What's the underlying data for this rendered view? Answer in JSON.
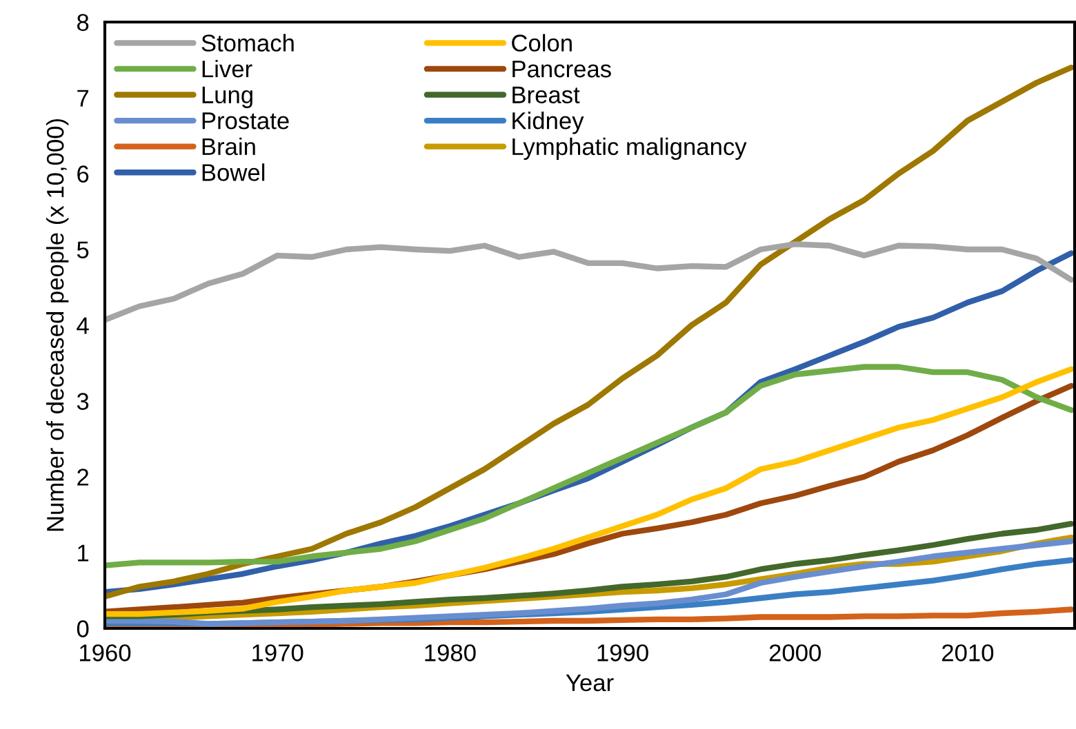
{
  "chart_data": {
    "type": "line",
    "xlabel": "Year",
    "ylabel": "Number of deceased people (x 10,000)",
    "x": [
      1960,
      1962,
      1964,
      1966,
      1968,
      1970,
      1972,
      1974,
      1976,
      1978,
      1980,
      1982,
      1984,
      1986,
      1988,
      1990,
      1992,
      1994,
      1996,
      1998,
      2000,
      2002,
      2004,
      2006,
      2008,
      2010,
      2012,
      2014,
      2016
    ],
    "xlim": [
      1960,
      2016.2
    ],
    "xticks": [
      1960,
      1970,
      1980,
      1990,
      2000,
      2010
    ],
    "ylim": [
      0,
      8
    ],
    "yticks": [
      0,
      1,
      2,
      3,
      4,
      5,
      6,
      7,
      8
    ],
    "grid": false,
    "legend": "top left",
    "marker": "none",
    "line_style": "solid",
    "series": [
      {
        "name": "Stomach",
        "color": "#a5a5a5",
        "values": [
          4.07,
          4.25,
          4.35,
          4.55,
          4.68,
          4.92,
          4.9,
          5.0,
          5.03,
          5.0,
          4.98,
          5.05,
          4.9,
          4.97,
          4.82,
          4.82,
          4.75,
          4.78,
          4.77,
          5.0,
          5.07,
          5.05,
          4.92,
          5.05,
          5.04,
          5.0,
          5.0,
          4.88,
          4.6
        ]
      },
      {
        "name": "Colon",
        "color": "#ffc000",
        "values": [
          0.19,
          0.19,
          0.21,
          0.23,
          0.26,
          0.35,
          0.42,
          0.5,
          0.55,
          0.6,
          0.7,
          0.8,
          0.92,
          1.05,
          1.2,
          1.35,
          1.5,
          1.7,
          1.85,
          2.1,
          2.2,
          2.35,
          2.5,
          2.65,
          2.75,
          2.9,
          3.05,
          3.25,
          3.42
        ]
      },
      {
        "name": "Liver",
        "color": "#70ad47",
        "values": [
          0.83,
          0.87,
          0.87,
          0.87,
          0.88,
          0.88,
          0.95,
          1.0,
          1.05,
          1.15,
          1.3,
          1.45,
          1.65,
          1.85,
          2.05,
          2.25,
          2.45,
          2.65,
          2.85,
          3.2,
          3.35,
          3.4,
          3.45,
          3.45,
          3.38,
          3.38,
          3.28,
          3.05,
          2.88
        ]
      },
      {
        "name": "Pancreas",
        "color": "#9e480e",
        "values": [
          0.22,
          0.25,
          0.28,
          0.31,
          0.34,
          0.4,
          0.45,
          0.5,
          0.55,
          0.62,
          0.7,
          0.78,
          0.88,
          0.98,
          1.12,
          1.25,
          1.32,
          1.4,
          1.5,
          1.65,
          1.75,
          1.88,
          2.0,
          2.2,
          2.35,
          2.55,
          2.78,
          3.0,
          3.2
        ]
      },
      {
        "name": "Lung",
        "color": "#9e7800",
        "values": [
          0.42,
          0.55,
          0.62,
          0.72,
          0.85,
          0.95,
          1.05,
          1.25,
          1.4,
          1.6,
          1.85,
          2.1,
          2.4,
          2.7,
          2.95,
          3.3,
          3.6,
          4.0,
          4.3,
          4.8,
          5.1,
          5.4,
          5.65,
          6.0,
          6.3,
          6.7,
          6.95,
          7.2,
          7.4
        ]
      },
      {
        "name": "Breast",
        "color": "#43682b",
        "values": [
          0.16,
          0.16,
          0.18,
          0.21,
          0.23,
          0.25,
          0.28,
          0.3,
          0.32,
          0.35,
          0.38,
          0.4,
          0.43,
          0.46,
          0.5,
          0.55,
          0.58,
          0.62,
          0.68,
          0.78,
          0.85,
          0.9,
          0.97,
          1.03,
          1.1,
          1.18,
          1.25,
          1.3,
          1.38
        ]
      },
      {
        "name": "Prostate",
        "color": "#698ed0",
        "values": [
          0.1,
          0.1,
          0.09,
          0.06,
          0.07,
          0.08,
          0.09,
          0.1,
          0.12,
          0.14,
          0.16,
          0.18,
          0.2,
          0.23,
          0.26,
          0.3,
          0.33,
          0.38,
          0.45,
          0.6,
          0.68,
          0.75,
          0.82,
          0.88,
          0.95,
          1.0,
          1.05,
          1.1,
          1.15
        ]
      },
      {
        "name": "Kidney",
        "color": "#3a7fc4",
        "values": [
          0.07,
          0.07,
          0.07,
          0.06,
          0.07,
          0.08,
          0.09,
          0.1,
          0.11,
          0.12,
          0.14,
          0.16,
          0.18,
          0.2,
          0.22,
          0.25,
          0.28,
          0.31,
          0.35,
          0.4,
          0.45,
          0.48,
          0.53,
          0.58,
          0.63,
          0.7,
          0.78,
          0.85,
          0.9
        ]
      },
      {
        "name": "Brain",
        "color": "#d4621a",
        "values": [
          0.03,
          0.03,
          0.03,
          0.03,
          0.04,
          0.05,
          0.05,
          0.06,
          0.07,
          0.07,
          0.08,
          0.08,
          0.09,
          0.1,
          0.1,
          0.11,
          0.12,
          0.12,
          0.13,
          0.15,
          0.15,
          0.15,
          0.16,
          0.16,
          0.17,
          0.17,
          0.2,
          0.22,
          0.25
        ]
      },
      {
        "name": "Lymphatic malignancy",
        "color": "#c89b00",
        "values": [
          0.13,
          0.13,
          0.14,
          0.16,
          0.18,
          0.2,
          0.22,
          0.25,
          0.28,
          0.3,
          0.33,
          0.36,
          0.39,
          0.42,
          0.45,
          0.48,
          0.5,
          0.53,
          0.58,
          0.65,
          0.72,
          0.8,
          0.85,
          0.85,
          0.88,
          0.95,
          1.02,
          1.12,
          1.2
        ]
      },
      {
        "name": "Bowel",
        "color": "#3160aa",
        "values": [
          0.48,
          0.52,
          0.58,
          0.65,
          0.72,
          0.82,
          0.9,
          1.0,
          1.12,
          1.22,
          1.35,
          1.5,
          1.65,
          1.82,
          1.98,
          2.2,
          2.42,
          2.65,
          2.85,
          3.25,
          3.42,
          3.6,
          3.78,
          3.98,
          4.1,
          4.3,
          4.45,
          4.72,
          4.95
        ]
      }
    ]
  }
}
